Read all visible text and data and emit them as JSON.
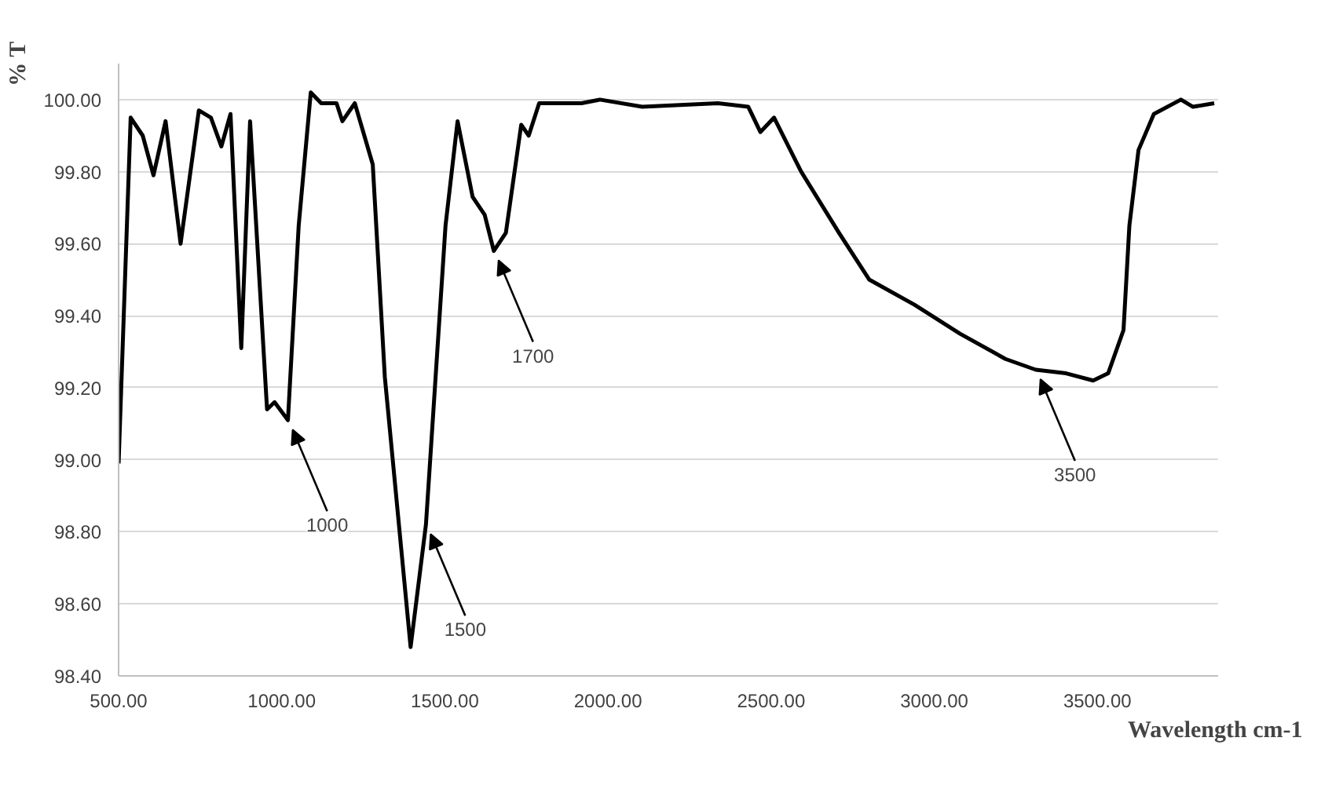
{
  "chart_data": {
    "type": "line",
    "xlabel": "Wavelength  cm-1",
    "ylabel": "% T",
    "xlim": [
      500,
      3870
    ],
    "ylim": [
      98.4,
      100.1
    ],
    "xticks": [
      {
        "value": 500,
        "label": "500.00"
      },
      {
        "value": 1000,
        "label": "1000.00"
      },
      {
        "value": 1500,
        "label": "1500.00"
      },
      {
        "value": 2000,
        "label": "2000.00"
      },
      {
        "value": 2500,
        "label": "2500.00"
      },
      {
        "value": 3000,
        "label": "3000.00"
      },
      {
        "value": 3500,
        "label": "3500.00"
      }
    ],
    "yticks": [
      {
        "value": 98.4,
        "label": "98.40"
      },
      {
        "value": 98.6,
        "label": "98.60"
      },
      {
        "value": 98.8,
        "label": "98.80"
      },
      {
        "value": 99.0,
        "label": "99.00"
      },
      {
        "value": 99.2,
        "label": "99.20"
      },
      {
        "value": 99.4,
        "label": "99.40"
      },
      {
        "value": 99.6,
        "label": "99.60"
      },
      {
        "value": 99.8,
        "label": "99.80"
      },
      {
        "value": 100.0,
        "label": "100.00"
      }
    ],
    "grid": "y",
    "marker": "none",
    "line_style": "solid",
    "x": [
      500,
      537,
      574,
      607,
      644,
      690,
      746,
      783,
      815,
      843,
      876,
      903,
      955,
      978,
      1019,
      1052,
      1089,
      1121,
      1168,
      1186,
      1224,
      1279,
      1316,
      1395,
      1442,
      1502,
      1539,
      1585,
      1622,
      1650,
      1687,
      1734,
      1757,
      1789,
      1919,
      1975,
      2105,
      2337,
      2430,
      2467,
      2509,
      2592,
      2708,
      2801,
      2940,
      3079,
      3218,
      3311,
      3404,
      3487,
      3533,
      3580,
      3598,
      3626,
      3673,
      3756,
      3793,
      3858
    ],
    "series": [
      {
        "color": "#000000",
        "values": [
          98.99,
          99.95,
          99.9,
          99.79,
          99.94,
          99.6,
          99.97,
          99.95,
          99.87,
          99.96,
          99.31,
          99.94,
          99.14,
          99.16,
          99.11,
          99.65,
          100.02,
          99.99,
          99.99,
          99.94,
          99.99,
          99.82,
          99.23,
          98.48,
          98.82,
          99.65,
          99.94,
          99.73,
          99.68,
          99.58,
          99.63,
          99.93,
          99.9,
          99.99,
          99.99,
          100.0,
          99.98,
          99.99,
          99.98,
          99.91,
          99.95,
          99.8,
          99.63,
          99.5,
          99.43,
          99.35,
          99.28,
          99.25,
          99.24,
          99.22,
          99.24,
          99.36,
          99.65,
          99.86,
          99.96,
          100.0,
          99.98,
          99.99
        ]
      }
    ],
    "annotations": [
      {
        "text": "1000",
        "x": 1019,
        "y": 99.11
      },
      {
        "text": "1500",
        "x": 1442,
        "y": 98.82
      },
      {
        "text": "1700",
        "x": 1650,
        "y": 99.58
      },
      {
        "text": "3500",
        "x": 3311,
        "y": 99.25
      }
    ]
  }
}
